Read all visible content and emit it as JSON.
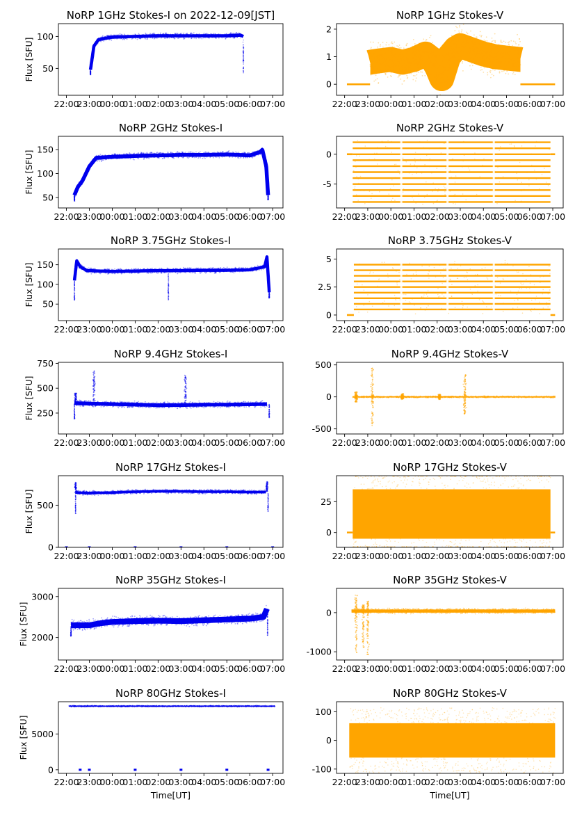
{
  "x_ticks": [
    "22:00",
    "23:00",
    "00:00",
    "01:00",
    "02:00",
    "03:00",
    "04:00",
    "05:00",
    "06:00",
    "07:00"
  ],
  "x_label": "Time[UT]",
  "y_label": "Flux [SFU]",
  "colors": {
    "stokes_i": "#0000ee",
    "stokes_v": "#ffa500"
  },
  "chart_data": [
    {
      "type": "scatter",
      "title": "NoRP 1GHz Stokes-I on 2022-12-09[JST]",
      "ylabel": "Flux [SFU]",
      "ylim": [
        8,
        120
      ],
      "yticks": [
        50,
        100
      ],
      "series": [
        {
          "base": [
            [
              23.05,
              48
            ],
            [
              23.2,
              85
            ],
            [
              23.4,
              95
            ],
            [
              23.7,
              97
            ],
            [
              24,
              99
            ],
            [
              25,
              100
            ],
            [
              26,
              101
            ],
            [
              27,
              101
            ],
            [
              28,
              101
            ],
            [
              29,
              101
            ],
            [
              29.6,
              102
            ],
            [
              29.72,
              100
            ]
          ],
          "spread": 2.5,
          "dips": [
            [
              23.05,
              40
            ],
            [
              29.72,
              42
            ]
          ]
        }
      ]
    },
    {
      "type": "scatter",
      "title": "NoRP 1GHz Stokes-V",
      "ylim": [
        -0.4,
        2.2
      ],
      "yticks": [
        0,
        1,
        2
      ],
      "series": [
        {
          "base": [
            [
              23.1,
              0.8
            ],
            [
              23.5,
              0.85
            ],
            [
              24,
              0.9
            ],
            [
              24.5,
              0.8
            ],
            [
              25,
              0.9
            ],
            [
              25.5,
              1.1
            ],
            [
              25.8,
              0.9
            ],
            [
              26,
              0.6
            ],
            [
              26.2,
              0.2
            ],
            [
              26.5,
              1.0
            ],
            [
              26.8,
              1.3
            ],
            [
              27,
              1.4
            ],
            [
              27.5,
              1.25
            ],
            [
              28,
              1.1
            ],
            [
              28.5,
              1.0
            ],
            [
              29,
              0.95
            ],
            [
              29.6,
              0.9
            ]
          ],
          "spread": 0.45,
          "flat": [
            [
              22.1,
              23.1,
              0
            ],
            [
              29.6,
              31.1,
              0
            ]
          ]
        }
      ]
    },
    {
      "type": "scatter",
      "title": "NoRP 2GHz Stokes-I",
      "ylim": [
        28,
        178
      ],
      "yticks": [
        50,
        100,
        150
      ],
      "series": [
        {
          "base": [
            [
              22.35,
              55
            ],
            [
              22.5,
              72
            ],
            [
              22.7,
              85
            ],
            [
              23,
              115
            ],
            [
              23.3,
              133
            ],
            [
              24,
              135
            ],
            [
              25,
              137
            ],
            [
              26,
              138
            ],
            [
              27,
              139
            ],
            [
              28,
              139
            ],
            [
              29,
              140
            ],
            [
              29.5,
              139
            ],
            [
              30,
              138
            ],
            [
              30.45,
              145
            ],
            [
              30.55,
              150
            ],
            [
              30.72,
              115
            ],
            [
              30.8,
              55
            ]
          ],
          "spread": 4,
          "dips": [
            [
              22.35,
              42
            ],
            [
              30.8,
              45
            ]
          ]
        }
      ]
    },
    {
      "type": "scatter",
      "title": "NoRP 2GHz Stokes-V",
      "ylim": [
        -9,
        3
      ],
      "yticks": [
        -5,
        0
      ],
      "series": [
        {
          "levels": [
            -8,
            -7,
            -6,
            -5,
            -4,
            -3,
            -2,
            -1,
            0,
            1,
            2
          ],
          "x": [
            22.35,
            30.9
          ],
          "flat": [
            [
              22.1,
              22.35,
              0
            ],
            [
              30.9,
              31.1,
              0
            ]
          ]
        }
      ]
    },
    {
      "type": "scatter",
      "title": "NoRP 3.75GHz Stokes-I",
      "ylim": [
        8,
        190
      ],
      "yticks": [
        50,
        100,
        150
      ],
      "series": [
        {
          "base": [
            [
              22.35,
              110
            ],
            [
              22.45,
              160
            ],
            [
              22.6,
              145
            ],
            [
              22.9,
              135
            ],
            [
              24,
              133
            ],
            [
              25,
              134
            ],
            [
              26,
              135
            ],
            [
              27,
              135
            ],
            [
              28,
              136
            ],
            [
              29,
              136
            ],
            [
              30,
              137
            ],
            [
              30.65,
              145
            ],
            [
              30.75,
              170
            ],
            [
              30.85,
              80
            ]
          ],
          "spread": 4,
          "dips": [
            [
              22.35,
              60
            ],
            [
              26.45,
              60
            ],
            [
              30.85,
              65
            ]
          ]
        }
      ]
    },
    {
      "type": "scatter",
      "title": "NoRP 3.75GHz Stokes-V",
      "ylim": [
        -0.5,
        5.9
      ],
      "yticks": [
        0.0,
        2.5,
        5.0
      ],
      "series": [
        {
          "levels": [
            0.5,
            1,
            1.5,
            2,
            2.5,
            3,
            3.5,
            4,
            4.5
          ],
          "x": [
            22.4,
            30.9
          ],
          "flat": [
            [
              22.1,
              22.4,
              0
            ],
            [
              30.9,
              31.1,
              0
            ]
          ]
        }
      ]
    },
    {
      "type": "scatter",
      "title": "NoRP 9.4GHz Stokes-I",
      "ylim": [
        40,
        760
      ],
      "yticks": [
        250,
        500,
        750
      ],
      "series": [
        {
          "base": [
            [
              22.35,
              350
            ],
            [
              23,
              345
            ],
            [
              24,
              340
            ],
            [
              25,
              335
            ],
            [
              26,
              330
            ],
            [
              27,
              330
            ],
            [
              28,
              335
            ],
            [
              29,
              335
            ],
            [
              30,
              338
            ],
            [
              30.75,
              340
            ]
          ],
          "spread": 18,
          "spikes": [
            [
              22.4,
              450
            ],
            [
              23.2,
              680
            ],
            [
              27.2,
              630
            ]
          ],
          "dips": [
            [
              22.35,
              190
            ],
            [
              30.85,
              200
            ]
          ]
        }
      ]
    },
    {
      "type": "scatter",
      "title": "NoRP 9.4GHz Stokes-V",
      "ylim": [
        -580,
        540
      ],
      "yticks": [
        -500,
        0,
        500
      ],
      "series": [
        {
          "base": [
            [
              22.35,
              0
            ],
            [
              31.1,
              0
            ]
          ],
          "spread": 8,
          "bursts": [
            [
              23.2,
              450,
              -450
            ],
            [
              27.2,
              350,
              -270
            ],
            [
              22.5,
              80,
              -80
            ],
            [
              24.5,
              50,
              -40
            ],
            [
              26.1,
              40,
              -40
            ]
          ]
        }
      ]
    },
    {
      "type": "scatter",
      "title": "NoRP 17GHz Stokes-I",
      "ylim": [
        0,
        850
      ],
      "yticks": [
        0,
        500
      ],
      "series": [
        {
          "base": [
            [
              22.4,
              650
            ],
            [
              23,
              645
            ],
            [
              24,
              650
            ],
            [
              25,
              660
            ],
            [
              26,
              665
            ],
            [
              27,
              665
            ],
            [
              28,
              660
            ],
            [
              29,
              660
            ],
            [
              30,
              655
            ],
            [
              30.7,
              655
            ]
          ],
          "spread": 15,
          "spikes": [
            [
              22.4,
              770
            ],
            [
              30.75,
              780
            ]
          ],
          "dips": [
            [
              22.4,
              400
            ],
            [
              30.8,
              420
            ]
          ],
          "markers": [
            [
              22.0,
              0
            ],
            [
              23.0,
              0
            ],
            [
              25.0,
              0
            ],
            [
              27.0,
              0
            ],
            [
              29.0,
              0
            ],
            [
              31.0,
              0
            ]
          ]
        }
      ]
    },
    {
      "type": "scatter",
      "title": "NoRP 17GHz Stokes-V",
      "ylim": [
        -12,
        46
      ],
      "yticks": [
        0,
        25
      ],
      "series": [
        {
          "band": [
            22.35,
            30.9,
            -5,
            35
          ],
          "flat": [
            [
              22.1,
              22.35,
              0
            ],
            [
              30.9,
              31.1,
              0
            ]
          ]
        }
      ]
    },
    {
      "type": "scatter",
      "title": "NoRP 35GHz Stokes-I",
      "ylim": [
        1450,
        3200
      ],
      "yticks": [
        2000,
        3000
      ],
      "series": [
        {
          "base": [
            [
              22.2,
              2300
            ],
            [
              23,
              2300
            ],
            [
              23.5,
              2350
            ],
            [
              24,
              2380
            ],
            [
              25,
              2400
            ],
            [
              26,
              2410
            ],
            [
              27,
              2400
            ],
            [
              28,
              2420
            ],
            [
              29,
              2440
            ],
            [
              30,
              2460
            ],
            [
              30.6,
              2500
            ],
            [
              30.75,
              2700
            ]
          ],
          "spread": 70,
          "dips": [
            [
              22.2,
              2020
            ],
            [
              30.78,
              2050
            ]
          ]
        }
      ]
    },
    {
      "type": "scatter",
      "title": "NoRP 35GHz Stokes-V",
      "ylim": [
        -1210,
        620
      ],
      "yticks": [
        -1000,
        0
      ],
      "series": [
        {
          "base": [
            [
              22.3,
              40
            ],
            [
              31.1,
              40
            ]
          ],
          "spread": 40,
          "bursts": [
            [
              22.5,
              450,
              -1050
            ],
            [
              23,
              300,
              -1100
            ],
            [
              22.8,
              200,
              -900
            ]
          ]
        }
      ]
    },
    {
      "type": "scatter",
      "title": "NoRP 80GHz Stokes-I",
      "ylim": [
        -500,
        9500
      ],
      "yticks": [
        0,
        5000
      ],
      "xlabel": "Time[UT]",
      "series": [
        {
          "base": [
            [
              22.1,
              8880
            ],
            [
              31.1,
              8880
            ]
          ],
          "spread": 60,
          "markers": [
            [
              22.6,
              0
            ],
            [
              23.0,
              0
            ],
            [
              25.0,
              0
            ],
            [
              27.0,
              0
            ],
            [
              29.0,
              0
            ],
            [
              30.8,
              0
            ]
          ]
        }
      ]
    },
    {
      "type": "scatter",
      "title": "NoRP 80GHz Stokes-V",
      "ylim": [
        -115,
        135
      ],
      "yticks": [
        -100,
        0,
        100
      ],
      "xlabel": "Time[UT]",
      "series": [
        {
          "band": [
            22.2,
            31.1,
            -60,
            60
          ]
        }
      ]
    }
  ]
}
